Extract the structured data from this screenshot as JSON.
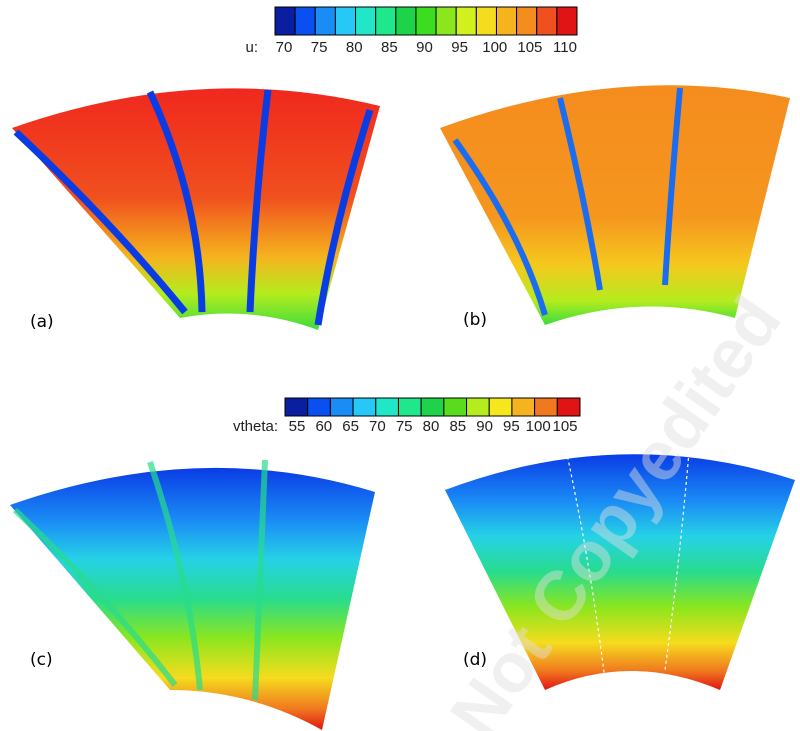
{
  "colorbars": [
    {
      "label": "u:",
      "ticks": [
        70,
        75,
        80,
        85,
        90,
        95,
        100,
        105,
        110
      ],
      "colors": [
        "#0a1ea0",
        "#0a4ff0",
        "#1a8cf5",
        "#26c8f5",
        "#22e6c8",
        "#20e68c",
        "#1ed24a",
        "#3cdc1e",
        "#8ce61e",
        "#d2f01e",
        "#f5dc1e",
        "#f5b41e",
        "#f58c1e",
        "#f0501e",
        "#e01414"
      ]
    },
    {
      "label": "vtheta:",
      "ticks": [
        55,
        60,
        65,
        70,
        75,
        80,
        85,
        90,
        95,
        100,
        105
      ],
      "colors": [
        "#0a1ea0",
        "#0a4ff0",
        "#1a8cf5",
        "#26c8f5",
        "#22e6c8",
        "#20e68c",
        "#1ed24a",
        "#5adc1e",
        "#b4ec1e",
        "#f5e61e",
        "#f5b41e",
        "#f0781e",
        "#e01414"
      ]
    }
  ],
  "panels": [
    "(a)",
    "(b)",
    "(c)",
    "(d)"
  ],
  "watermark": "Not Copyedited"
}
